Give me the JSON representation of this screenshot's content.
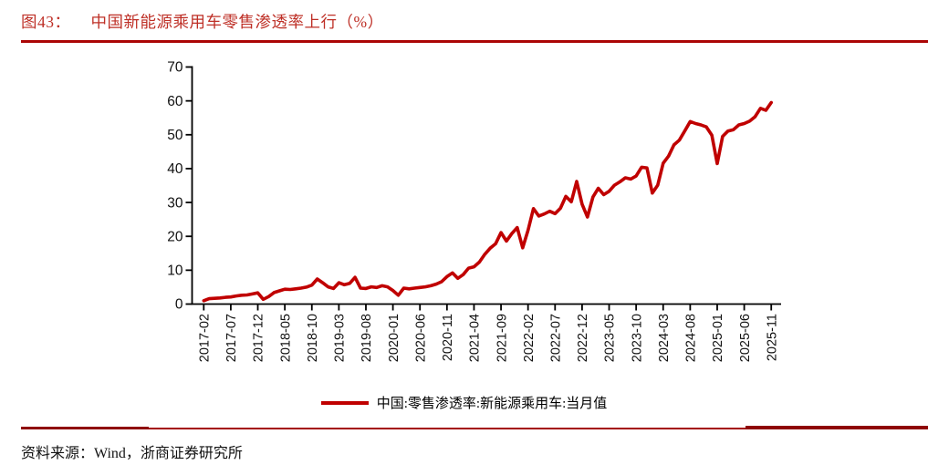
{
  "page": {
    "figure_label": "图43：",
    "figure_title": "中国新能源乘用车零售渗透率上行（%）",
    "source_text": "资料来源：Wind，浙商证券研究所"
  },
  "legend": {
    "series_label": "中国:零售渗透率:新能源乘用车:当月值"
  },
  "colors": {
    "line": "#C00000",
    "title_text": "#BE2F26",
    "rule_red": "#AB0505",
    "axis": "#000000",
    "tick_text": "#111111"
  },
  "chart_data": {
    "type": "line",
    "title": "中国新能源乘用车零售渗透率上行（%）",
    "unit": "%",
    "x_start": "2017-02",
    "x_end": "2025-11",
    "x_freq": "monthly",
    "x_tick_labels": [
      "2017-02",
      "2017-07",
      "2017-12",
      "2018-05",
      "2018-10",
      "2019-03",
      "2019-08",
      "2020-01",
      "2020-06",
      "2020-11",
      "2021-04",
      "2021-09",
      "2022-02",
      "2022-07",
      "2022-12",
      "2023-05",
      "2023-10",
      "2024-03",
      "2024-08",
      "2025-01",
      "2025-06",
      "2025-11"
    ],
    "yticks": [
      0,
      10,
      20,
      30,
      40,
      50,
      60,
      70
    ],
    "ylim": [
      0,
      70
    ],
    "grid": false,
    "legend_position": "bottom-center",
    "series": [
      {
        "name": "中国:零售渗透率:新能源乘用车:当月值",
        "color": "#C00000",
        "values": [
          1.0,
          1.6,
          1.7,
          1.8,
          2.0,
          2.1,
          2.4,
          2.6,
          2.7,
          3.0,
          3.3,
          1.4,
          2.2,
          3.4,
          3.9,
          4.4,
          4.3,
          4.5,
          4.7,
          5.0,
          5.6,
          7.4,
          6.3,
          5.1,
          4.6,
          6.3,
          5.7,
          6.1,
          7.9,
          4.7,
          4.6,
          5.1,
          4.9,
          5.4,
          5.1,
          4.0,
          2.6,
          4.7,
          4.5,
          4.7,
          4.9,
          5.1,
          5.4,
          5.9,
          6.6,
          8.1,
          9.2,
          7.6,
          8.7,
          10.6,
          11.0,
          12.4,
          14.7,
          16.5,
          17.8,
          21.1,
          18.6,
          20.8,
          22.6,
          16.6,
          21.8,
          28.2,
          26.0,
          26.6,
          27.4,
          26.7,
          28.3,
          31.8,
          30.2,
          36.2,
          29.5,
          25.7,
          31.6,
          34.2,
          32.3,
          33.3,
          35.1,
          36.1,
          37.3,
          36.9,
          37.8,
          40.4,
          40.2,
          32.8,
          35.1,
          41.6,
          43.7,
          47.0,
          48.4,
          51.1,
          53.9,
          53.3,
          52.9,
          52.3,
          49.9,
          41.5,
          49.5,
          51.1,
          51.5,
          52.9,
          53.3,
          54.0,
          55.3,
          57.8,
          57.2,
          59.5
        ]
      }
    ]
  }
}
